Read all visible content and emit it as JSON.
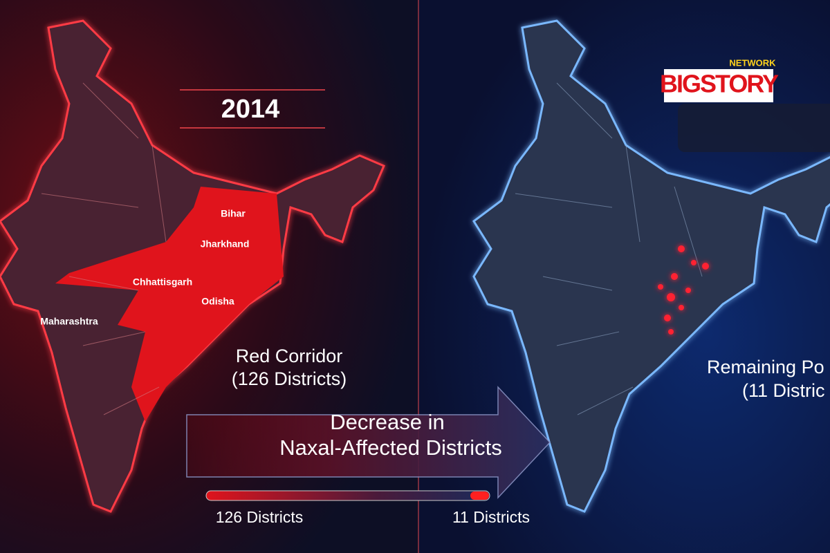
{
  "header": {
    "year": "2014"
  },
  "left_map": {
    "states": [
      "Bihar",
      "Jharkhand",
      "Chhattisgarh",
      "Odisha",
      "Maharashtra"
    ],
    "caption": [
      "Red Corridor",
      "(126 Districts)"
    ]
  },
  "right_map": {
    "caption": [
      "Remaining Po",
      "(11 Distric"
    ]
  },
  "arrow": {
    "lines": [
      "Decrease in",
      "Naxal-Affected Districts"
    ]
  },
  "progress": {
    "start_label": "126 Districts",
    "end_label": "11 Districts"
  },
  "logo": {
    "brand": "BIGSTORY",
    "sub": "NETWORK"
  }
}
